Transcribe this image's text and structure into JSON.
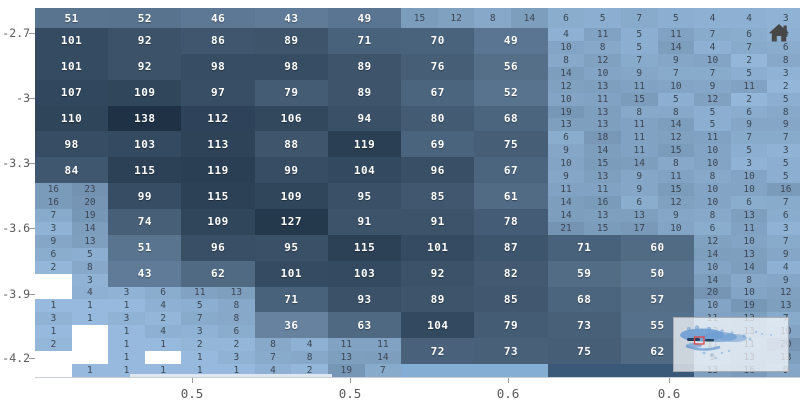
{
  "chart_data": {
    "type": "heatmap",
    "title": "",
    "x_axis": {
      "tick_labels": [
        "0.5",
        "0.5",
        "0.6",
        "0.6"
      ]
    },
    "y_axis": {
      "tick_labels": [
        "-2.7",
        "-3",
        "-3.3",
        "-3.6",
        "-3.9",
        "-4.2"
      ]
    },
    "grid_on": false,
    "big_grid": [
      [
        51,
        52,
        46,
        43,
        49,
        null,
        null
      ],
      [
        101,
        92,
        86,
        89,
        71,
        70,
        49
      ],
      [
        101,
        92,
        98,
        98,
        89,
        76,
        56
      ],
      [
        107,
        109,
        97,
        79,
        89,
        67,
        52
      ],
      [
        110,
        138,
        112,
        106,
        94,
        80,
        68
      ],
      [
        98,
        103,
        113,
        88,
        119,
        69,
        75
      ],
      [
        84,
        115,
        119,
        99,
        104,
        96,
        67
      ],
      [
        null,
        99,
        115,
        109,
        95,
        85,
        61
      ],
      [
        null,
        74,
        109,
        127,
        91,
        91,
        78
      ],
      [
        null,
        51,
        96,
        95,
        115,
        101,
        87
      ],
      [
        null,
        43,
        62,
        101,
        103,
        92,
        82
      ],
      [
        null,
        null,
        null,
        71,
        93,
        89,
        85
      ],
      [
        null,
        null,
        null,
        36,
        63,
        104,
        79
      ],
      [
        null,
        null,
        null,
        null,
        null,
        72,
        73
      ]
    ],
    "right_big": [
      [
        71,
        60
      ],
      [
        59,
        50
      ],
      [
        68,
        57
      ],
      [
        73,
        55
      ],
      [
        75,
        62
      ]
    ],
    "left_pairs": [
      [
        16,
        23
      ],
      [
        16,
        20
      ],
      [
        7,
        19
      ],
      [
        3,
        14
      ],
      [
        9,
        13
      ],
      [
        6,
        5
      ],
      [
        2,
        8
      ],
      [
        "",
        3
      ],
      [
        "",
        4
      ],
      [
        1,
        1
      ],
      [
        3,
        1
      ],
      [
        1,
        ""
      ],
      [
        2,
        ""
      ],
      [
        "",
        ""
      ],
      [
        "",
        1
      ]
    ],
    "mid_quads": [
      [
        3,
        6,
        11,
        13
      ],
      [
        1,
        4,
        5,
        8
      ],
      [
        3,
        2,
        7,
        8
      ],
      [
        1,
        4,
        3,
        6
      ],
      [
        1,
        1,
        2,
        2
      ],
      [
        1,
        "",
        1,
        3
      ],
      [
        1,
        1,
        1,
        1
      ]
    ],
    "mid2_quads": [
      [
        8,
        4,
        11,
        11
      ],
      [
        7,
        8,
        13,
        14
      ],
      [
        4,
        2,
        19,
        7
      ]
    ],
    "top_quad": [
      15,
      12,
      8,
      14
    ],
    "right_top": [
      6,
      5,
      7,
      5,
      4,
      4,
      3
    ],
    "right_rows": [
      [
        4,
        11,
        5,
        11,
        7,
        6,
        4
      ],
      [
        10,
        8,
        5,
        14,
        4,
        7,
        6
      ],
      [
        8,
        12,
        7,
        9,
        10,
        2,
        8
      ],
      [
        14,
        10,
        9,
        7,
        7,
        5,
        3
      ],
      [
        12,
        13,
        11,
        10,
        9,
        11,
        2
      ],
      [
        10,
        11,
        15,
        5,
        12,
        2,
        5
      ],
      [
        19,
        13,
        8,
        8,
        5,
        6,
        8
      ],
      [
        13,
        13,
        11,
        14,
        5,
        9,
        9
      ],
      [
        6,
        18,
        11,
        12,
        11,
        7,
        7
      ],
      [
        9,
        14,
        11,
        15,
        10,
        5,
        3
      ],
      [
        10,
        15,
        14,
        8,
        10,
        3,
        5
      ],
      [
        9,
        13,
        9,
        11,
        8,
        10,
        5
      ],
      [
        11,
        11,
        9,
        15,
        10,
        10,
        16
      ],
      [
        14,
        16,
        6,
        12,
        10,
        6,
        7
      ],
      [
        14,
        13,
        13,
        9,
        8,
        13,
        6
      ],
      [
        21,
        15,
        17,
        10,
        6,
        11,
        3
      ]
    ],
    "edge_rows": [
      [
        12,
        10,
        7
      ],
      [
        14,
        13,
        9
      ],
      [
        10,
        14,
        4
      ],
      [
        14,
        8,
        9
      ],
      [
        20,
        10,
        12
      ],
      [
        10,
        19,
        13
      ],
      [
        11,
        13,
        7
      ],
      [
        13,
        13,
        10
      ],
      [
        11,
        11,
        20
      ],
      [
        9,
        13,
        13
      ],
      [
        13,
        16,
        9
      ]
    ]
  },
  "colors": {
    "cell_dark": "#1e3144",
    "cell_light": "#9cc0e4",
    "empty_cell": "#ffffff",
    "clipped_light": "#85aed4",
    "clipped_dark": "#3a5878",
    "axis_text": "#595959",
    "minimap_blob": "#6d9dd1",
    "minimap_dash": "#23415f",
    "viewport_red": "#e04545",
    "home_icon": "#474747"
  },
  "icons": {
    "home": "home-icon",
    "minimap": "minimap-navigator"
  }
}
